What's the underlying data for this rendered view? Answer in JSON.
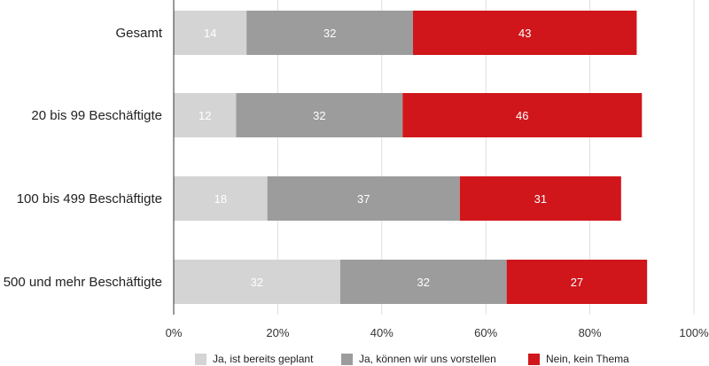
{
  "chart_data": {
    "type": "bar",
    "orientation": "horizontal",
    "stacked": true,
    "categories": [
      "Gesamt",
      "20 bis 99 Beschäftigte",
      "100 bis 499 Beschäftigte",
      "500 und mehr Beschäftigte"
    ],
    "series": [
      {
        "name": "Ja, ist bereits geplant",
        "values": [
          14,
          12,
          18,
          32
        ],
        "color": "#d4d4d4"
      },
      {
        "name": "Ja, können wir uns vorstellen",
        "values": [
          32,
          32,
          37,
          32
        ],
        "color": "#9d9c9c"
      },
      {
        "name": "Nein, kein Thema",
        "values": [
          43,
          46,
          31,
          27
        ],
        "color": "#d0161b"
      }
    ],
    "xlim": [
      0,
      100
    ],
    "xticks": [
      "0%",
      "20%",
      "40%",
      "60%",
      "80%",
      "100%"
    ],
    "grid": true,
    "legend_position": "bottom"
  }
}
